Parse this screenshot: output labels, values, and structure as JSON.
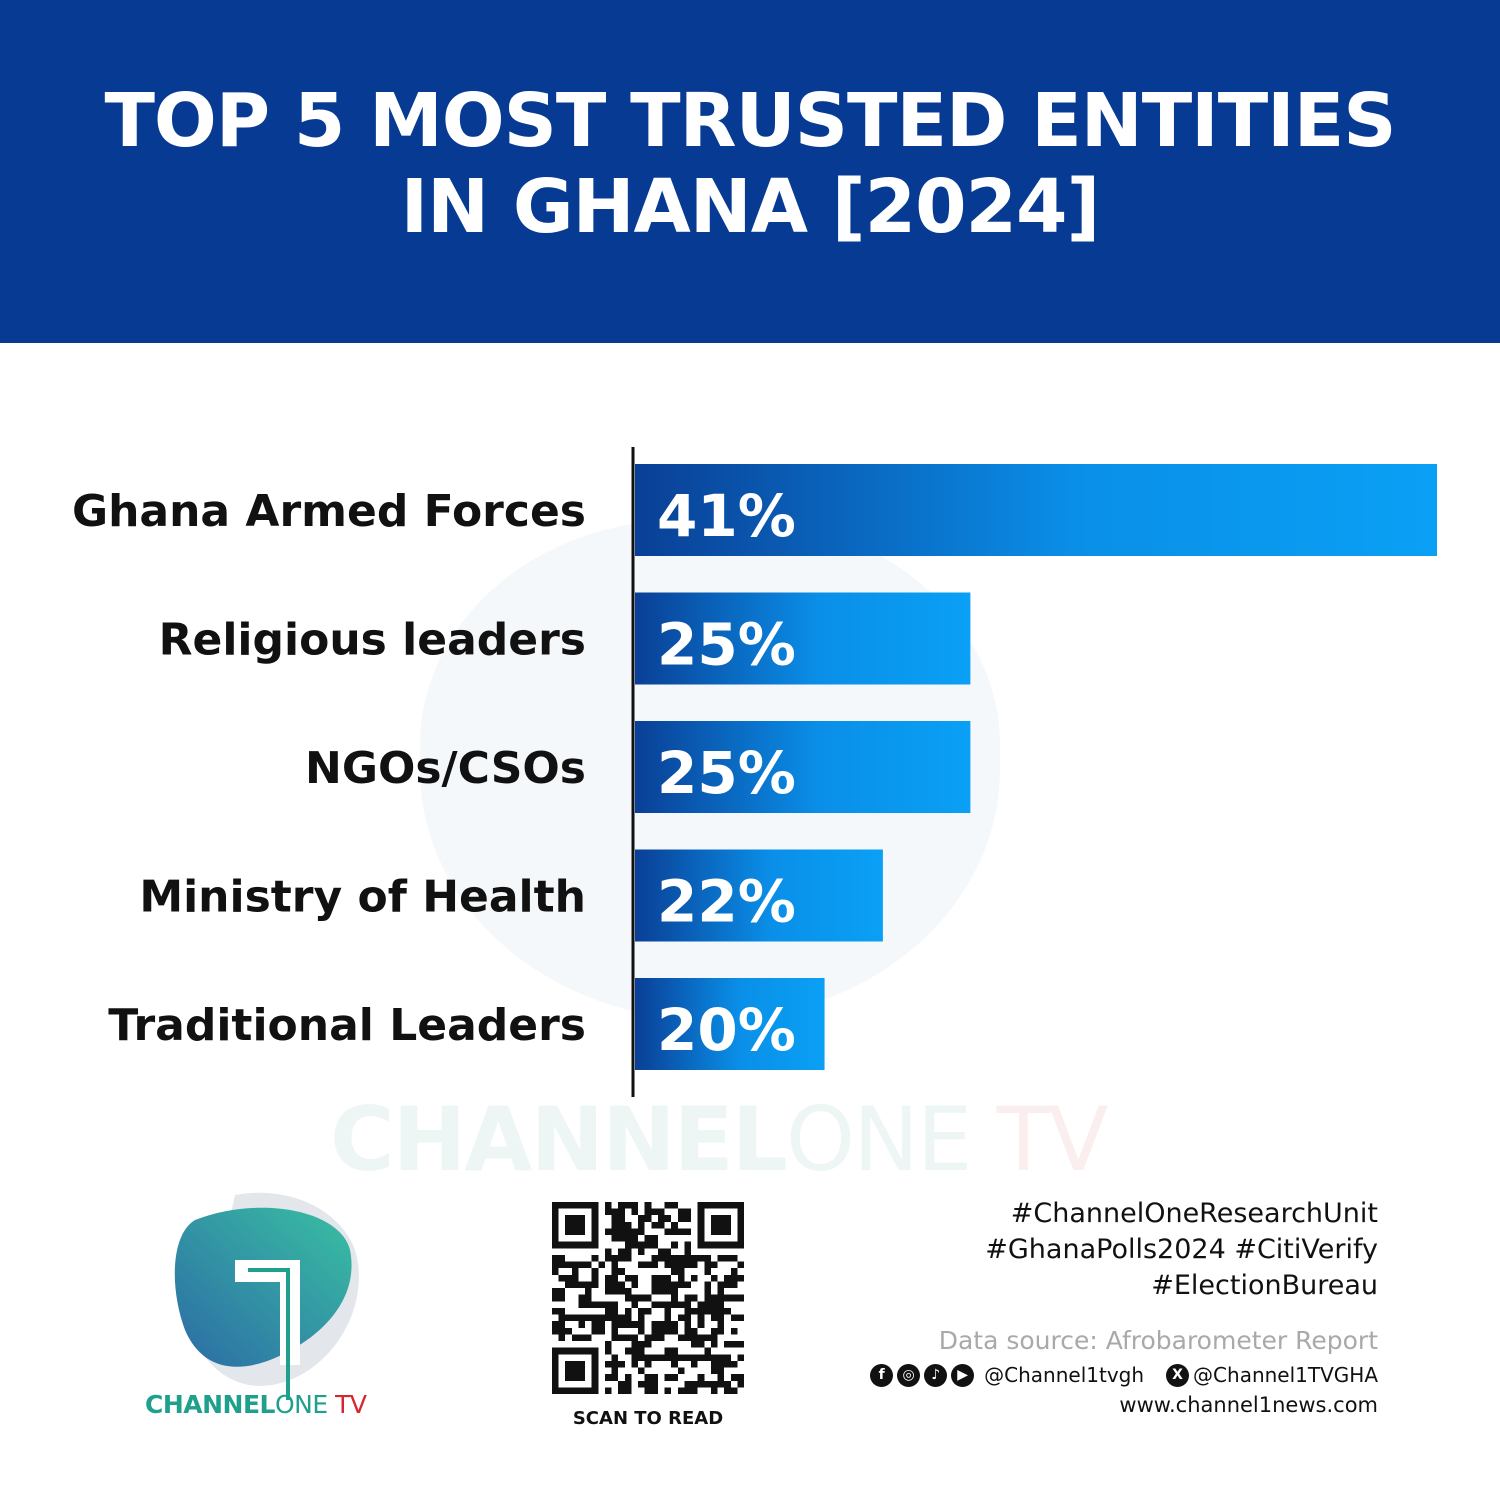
{
  "chart_data": {
    "type": "bar",
    "orientation": "horizontal",
    "title": "TOP 5 MOST TRUSTED ENTITIES IN GHANA [2024]",
    "categories": [
      "Ghana Armed Forces",
      "Religious leaders",
      "NGOs/CSOs",
      "Ministry of Health",
      "Traditional Leaders"
    ],
    "values": [
      41,
      25,
      25,
      22,
      20
    ],
    "data_labels": [
      "41%",
      "25%",
      "25%",
      "22%",
      "20%"
    ],
    "xlim": [
      13.5,
      41
    ],
    "grid": false,
    "bar_gradient": [
      "#0a3f96",
      "#0aa0f5"
    ]
  },
  "header": {
    "title_line1": "TOP 5 MOST TRUSTED ENTITIES",
    "title_line2": "IN GHANA [2024]",
    "color": "#073a93"
  },
  "watermark": {
    "brand": "CHANNEL",
    "one": "ONE",
    "tv": " TV"
  },
  "logo": {
    "brand": "CHANNEL",
    "one": "ONE",
    "tv": " TV"
  },
  "qr": {
    "caption": "SCAN TO READ"
  },
  "footer": {
    "tags": [
      "#ChannelOneResearchUnit",
      "#GhanaPolls2024 #CitiVerify",
      "#ElectionBureau"
    ],
    "source": "Data source: Afrobarometer Report",
    "handle1": "@Channel1tvgh",
    "handle2": "@Channel1TVGHA",
    "website": "www.channel1news.com",
    "icons": [
      "facebook-icon",
      "instagram-icon",
      "tiktok-icon",
      "youtube-icon",
      "x-icon"
    ]
  }
}
